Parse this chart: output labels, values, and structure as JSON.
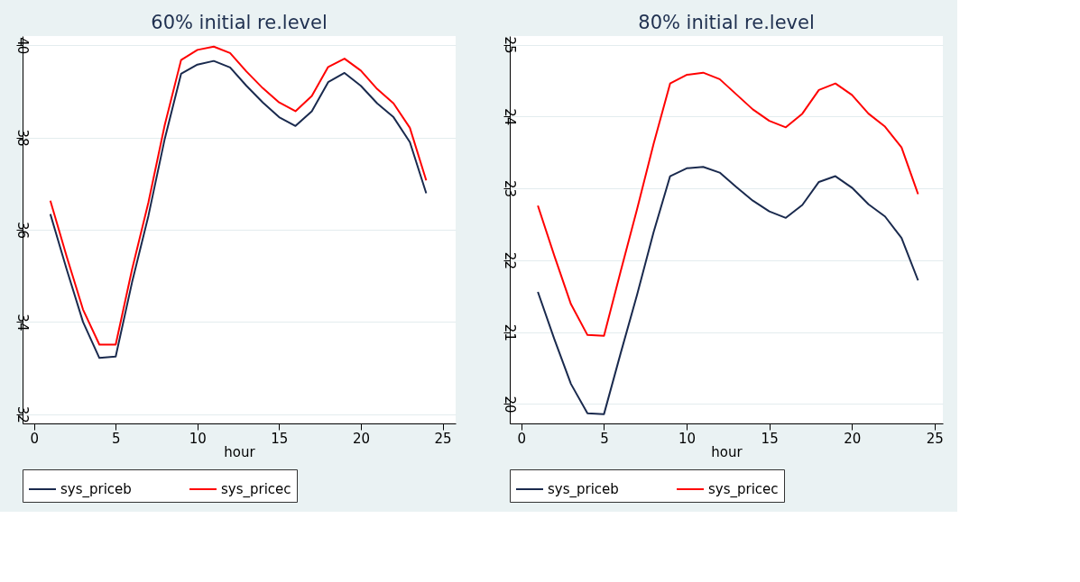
{
  "chart_data": [
    {
      "type": "line",
      "title": "60% initial re.level",
      "xlabel": "hour",
      "x": [
        1,
        2,
        3,
        4,
        5,
        6,
        7,
        8,
        9,
        10,
        11,
        12,
        13,
        14,
        15,
        16,
        17,
        18,
        19,
        20,
        21,
        22,
        23,
        24
      ],
      "series": [
        {
          "name": "sys_priceb",
          "color": "#1a2a4e",
          "values": [
            36.34,
            35.14,
            34.0,
            33.22,
            33.25,
            34.86,
            36.3,
            37.97,
            39.38,
            39.58,
            39.66,
            39.52,
            39.12,
            38.76,
            38.44,
            38.25,
            38.57,
            39.2,
            39.4,
            39.12,
            38.74,
            38.44,
            37.9,
            36.79
          ]
        },
        {
          "name": "sys_pricec",
          "color": "#ff0000",
          "values": [
            36.63,
            35.42,
            34.27,
            33.51,
            33.51,
            35.14,
            36.59,
            38.27,
            39.68,
            39.9,
            39.97,
            39.83,
            39.43,
            39.07,
            38.76,
            38.57,
            38.9,
            39.53,
            39.71,
            39.45,
            39.05,
            38.74,
            38.21,
            37.07
          ]
        }
      ],
      "xlim": [
        -0.7,
        25.8
      ],
      "xticks": [
        0,
        5,
        10,
        15,
        20,
        25
      ],
      "ylim": [
        31.8,
        40.2
      ],
      "yticks": [
        32,
        34,
        36,
        38,
        40
      ],
      "grid": "y",
      "legend": "bottom"
    },
    {
      "type": "line",
      "title": "80% initial re.level",
      "xlabel": "hour",
      "x": [
        1,
        2,
        3,
        4,
        5,
        6,
        7,
        8,
        9,
        10,
        11,
        12,
        13,
        14,
        15,
        16,
        17,
        18,
        19,
        20,
        21,
        22,
        23,
        24
      ],
      "series": [
        {
          "name": "sys_priceb",
          "color": "#1a2a4e",
          "values": [
            21.56,
            20.9,
            20.28,
            19.87,
            19.86,
            20.7,
            21.52,
            22.39,
            23.17,
            23.28,
            23.3,
            23.22,
            23.02,
            22.83,
            22.68,
            22.59,
            22.77,
            23.09,
            23.17,
            23.01,
            22.78,
            22.61,
            22.31,
            21.72
          ]
        },
        {
          "name": "sys_pricec",
          "color": "#ff0000",
          "values": [
            22.76,
            22.06,
            21.39,
            20.96,
            20.95,
            21.84,
            22.71,
            23.62,
            24.46,
            24.58,
            24.61,
            24.52,
            24.31,
            24.1,
            23.94,
            23.85,
            24.04,
            24.37,
            24.46,
            24.3,
            24.04,
            23.86,
            23.57,
            22.92
          ]
        }
      ],
      "xlim": [
        -0.7,
        25.5
      ],
      "xticks": [
        0,
        5,
        10,
        15,
        20,
        25
      ],
      "ylim": [
        19.73,
        25.12
      ],
      "yticks": [
        20,
        21,
        22,
        23,
        24,
        25
      ],
      "grid": "y",
      "legend": "bottom"
    }
  ]
}
